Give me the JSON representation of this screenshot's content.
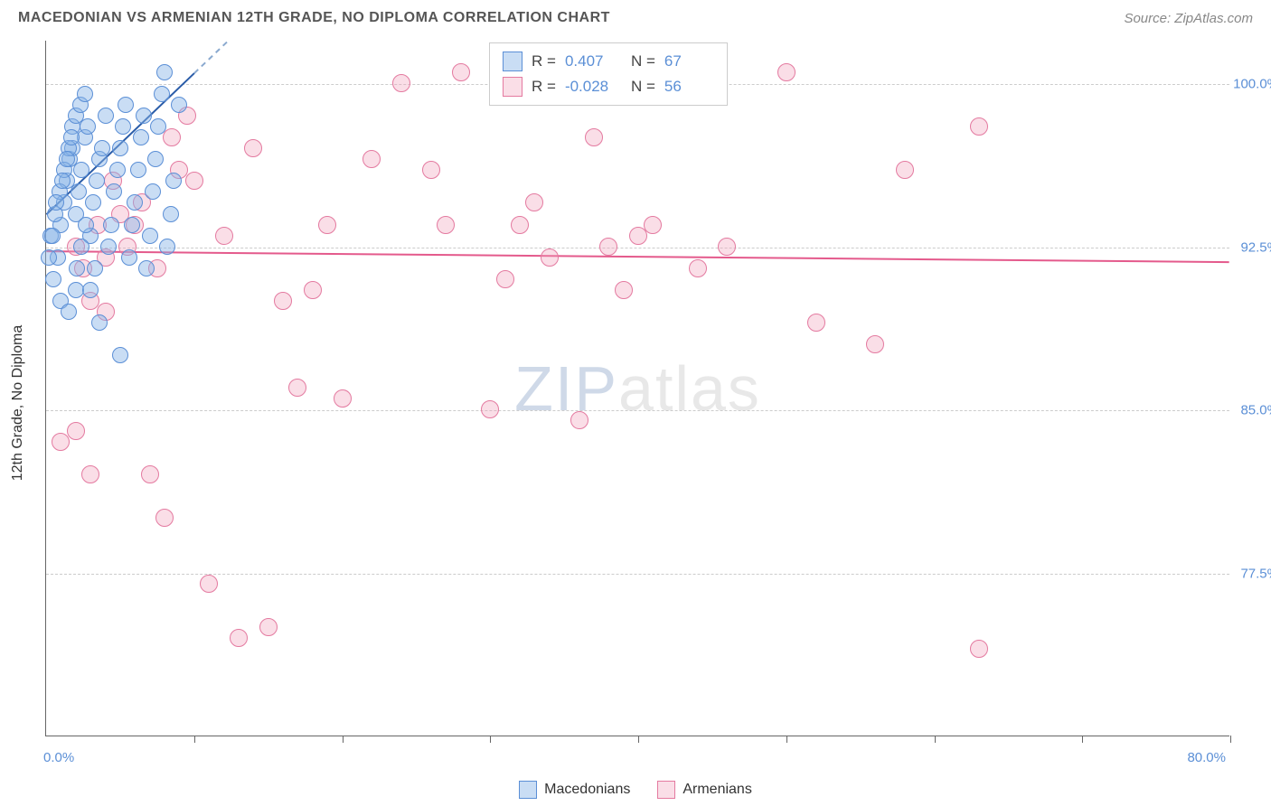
{
  "header": {
    "title": "MACEDONIAN VS ARMENIAN 12TH GRADE, NO DIPLOMA CORRELATION CHART",
    "source": "Source: ZipAtlas.com"
  },
  "watermark": {
    "zip": "ZIP",
    "atlas": "atlas"
  },
  "axes": {
    "ylabel": "12th Grade, No Diploma",
    "xlim": [
      0,
      80
    ],
    "ylim": [
      70,
      102
    ],
    "xlabel_min": "0.0%",
    "xlabel_max": "80.0%",
    "xticks": [
      10,
      20,
      30,
      40,
      50,
      60,
      70,
      80
    ],
    "yticks": [
      {
        "v": 77.5,
        "label": "77.5%"
      },
      {
        "v": 85.0,
        "label": "85.0%"
      },
      {
        "v": 92.5,
        "label": "92.5%"
      },
      {
        "v": 100.0,
        "label": "100.0%"
      }
    ]
  },
  "grid_color": "#cccccc",
  "background_color": "#ffffff",
  "series": {
    "macedonians": {
      "label": "Macedonians",
      "fill": "rgba(135,180,230,0.45)",
      "stroke": "#5b8fd6",
      "marker_radius": 9,
      "line_color": "#2a5ca8",
      "line_dash_color": "#8aa9cf",
      "line_width": 2,
      "R": "0.407",
      "N": "67",
      "regression": {
        "x1": 0,
        "y1": 94.0,
        "x2": 10,
        "y2": 100.5,
        "dash_to_x": 14
      },
      "points": [
        [
          0.5,
          91.0
        ],
        [
          0.8,
          92.0
        ],
        [
          1.0,
          93.5
        ],
        [
          1.2,
          94.5
        ],
        [
          1.4,
          95.5
        ],
        [
          1.6,
          96.5
        ],
        [
          1.8,
          97.0
        ],
        [
          2.0,
          94.0
        ],
        [
          2.2,
          95.0
        ],
        [
          2.4,
          96.0
        ],
        [
          2.6,
          97.5
        ],
        [
          2.8,
          98.0
        ],
        [
          3.0,
          93.0
        ],
        [
          3.2,
          94.5
        ],
        [
          3.4,
          95.5
        ],
        [
          3.6,
          96.5
        ],
        [
          3.8,
          97.0
        ],
        [
          4.0,
          98.5
        ],
        [
          4.2,
          92.5
        ],
        [
          4.4,
          93.5
        ],
        [
          4.6,
          95.0
        ],
        [
          4.8,
          96.0
        ],
        [
          5.0,
          97.0
        ],
        [
          5.2,
          98.0
        ],
        [
          5.4,
          99.0
        ],
        [
          5.6,
          92.0
        ],
        [
          5.8,
          93.5
        ],
        [
          6.0,
          94.5
        ],
        [
          6.2,
          96.0
        ],
        [
          6.4,
          97.5
        ],
        [
          6.6,
          98.5
        ],
        [
          6.8,
          91.5
        ],
        [
          7.0,
          93.0
        ],
        [
          7.2,
          95.0
        ],
        [
          7.4,
          96.5
        ],
        [
          7.6,
          98.0
        ],
        [
          7.8,
          99.5
        ],
        [
          8.0,
          100.5
        ],
        [
          8.2,
          92.5
        ],
        [
          8.4,
          94.0
        ],
        [
          8.6,
          95.5
        ],
        [
          1.0,
          90.0
        ],
        [
          1.5,
          89.5
        ],
        [
          2.0,
          90.5
        ],
        [
          0.3,
          93.0
        ],
        [
          0.6,
          94.0
        ],
        [
          0.9,
          95.0
        ],
        [
          1.2,
          96.0
        ],
        [
          1.5,
          97.0
        ],
        [
          1.8,
          98.0
        ],
        [
          2.1,
          91.5
        ],
        [
          2.4,
          92.5
        ],
        [
          2.7,
          93.5
        ],
        [
          3.0,
          90.5
        ],
        [
          3.3,
          91.5
        ],
        [
          3.6,
          89.0
        ],
        [
          0.2,
          92.0
        ],
        [
          0.4,
          93.0
        ],
        [
          0.7,
          94.5
        ],
        [
          1.1,
          95.5
        ],
        [
          1.4,
          96.5
        ],
        [
          1.7,
          97.5
        ],
        [
          2.0,
          98.5
        ],
        [
          2.3,
          99.0
        ],
        [
          2.6,
          99.5
        ],
        [
          5.0,
          87.5
        ],
        [
          9.0,
          99.0
        ]
      ]
    },
    "armenians": {
      "label": "Armenians",
      "fill": "rgba(240,160,185,0.35)",
      "stroke": "#e47aa0",
      "marker_radius": 10,
      "line_color": "#e45a8c",
      "line_width": 2,
      "R": "-0.028",
      "N": "56",
      "regression": {
        "x1": 0,
        "y1": 92.3,
        "x2": 80,
        "y2": 91.8
      },
      "points": [
        [
          2.0,
          84.0
        ],
        [
          3.0,
          90.0
        ],
        [
          4.0,
          92.0
        ],
        [
          5.0,
          94.0
        ],
        [
          6.0,
          93.5
        ],
        [
          7.0,
          82.0
        ],
        [
          8.0,
          80.0
        ],
        [
          9.0,
          96.0
        ],
        [
          10.0,
          95.5
        ],
        [
          11.0,
          77.0
        ],
        [
          12.0,
          93.0
        ],
        [
          13.0,
          74.5
        ],
        [
          14.0,
          97.0
        ],
        [
          15.0,
          75.0
        ],
        [
          16.0,
          90.0
        ],
        [
          17.0,
          86.0
        ],
        [
          18.0,
          90.5
        ],
        [
          19.0,
          93.5
        ],
        [
          20.0,
          85.5
        ],
        [
          22.0,
          96.5
        ],
        [
          24.0,
          100.0
        ],
        [
          26.0,
          96.0
        ],
        [
          27.0,
          93.5
        ],
        [
          28.0,
          100.5
        ],
        [
          30.0,
          85.0
        ],
        [
          31.0,
          91.0
        ],
        [
          32.0,
          93.5
        ],
        [
          33.0,
          94.5
        ],
        [
          34.0,
          92.0
        ],
        [
          35.0,
          100.0
        ],
        [
          36.0,
          84.5
        ],
        [
          37.0,
          97.5
        ],
        [
          38.0,
          92.5
        ],
        [
          39.0,
          90.5
        ],
        [
          40.0,
          93.0
        ],
        [
          41.0,
          93.5
        ],
        [
          52.0,
          89.0
        ],
        [
          56.0,
          88.0
        ],
        [
          58.0,
          96.0
        ],
        [
          63.0,
          98.0
        ],
        [
          1.0,
          83.5
        ],
        [
          2.5,
          91.5
        ],
        [
          4.5,
          95.5
        ],
        [
          5.5,
          92.5
        ],
        [
          6.5,
          94.5
        ],
        [
          8.5,
          97.5
        ],
        [
          9.5,
          98.5
        ],
        [
          3.5,
          93.5
        ],
        [
          7.5,
          91.5
        ],
        [
          44.0,
          91.5
        ],
        [
          46.0,
          92.5
        ],
        [
          63.0,
          74.0
        ],
        [
          50.0,
          100.5
        ],
        [
          3.0,
          82.0
        ],
        [
          4.0,
          89.5
        ],
        [
          2.0,
          92.5
        ]
      ]
    }
  },
  "stats_labels": {
    "R": "R =",
    "N": "N ="
  }
}
